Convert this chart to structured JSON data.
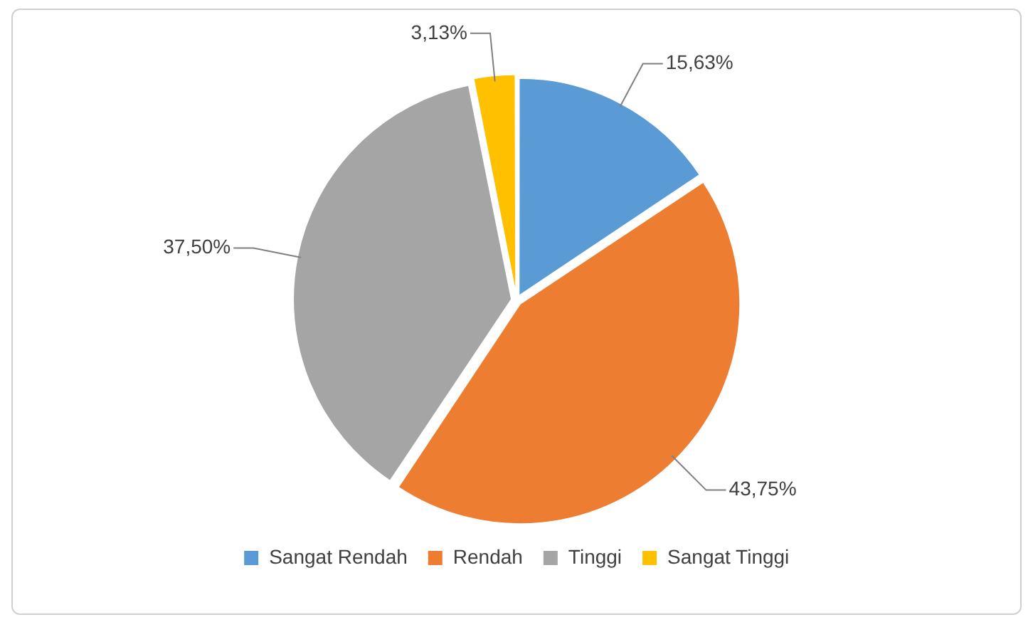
{
  "chart_data": {
    "type": "pie",
    "categories": [
      "Sangat Rendah",
      "Rendah",
      "Tinggi",
      "Sangat Tinggi"
    ],
    "values": [
      15.63,
      43.75,
      37.5,
      3.13
    ],
    "colors": [
      "#5b9bd5",
      "#ed7d31",
      "#a5a5a5",
      "#ffc000"
    ],
    "value_labels": [
      "15,63%",
      "43,75%",
      "37,50%",
      "3,13%"
    ],
    "legend": "bottom"
  }
}
